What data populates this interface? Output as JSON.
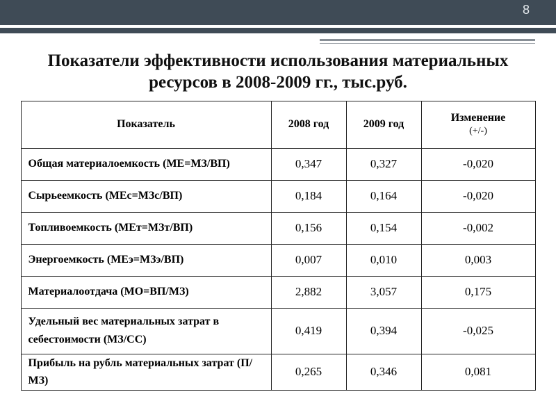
{
  "page_number": "8",
  "title": "Показатели эффективности использования материальных ресурсов в 2008-2009 гг., тыс.руб.",
  "columns": {
    "indicator": "Показатель",
    "year1": "2008 год",
    "year2": "2009 год",
    "change": "Изменение",
    "change_sub": "(+/-)"
  },
  "rows": [
    {
      "label": "Общая материалоемкость (МЕ=МЗ/ВП)",
      "y1": "0,347",
      "y2": "0,327",
      "chg": "-0,020",
      "tall": false
    },
    {
      "label": "Сырьеемкость (МЕс=МЗс/ВП)",
      "y1": "0,184",
      "y2": "0,164",
      "chg": "-0,020",
      "tall": false
    },
    {
      "label": "Топливоемкость (МЕт=МЗт/ВП)",
      "y1": "0,156",
      "y2": "0,154",
      "chg": "-0,002",
      "tall": false
    },
    {
      "label": "Энергоемкость (МЕэ=МЗэ/ВП)",
      "y1": "0,007",
      "y2": "0,010",
      "chg": "0,003",
      "tall": false
    },
    {
      "label": "Материалоотдача (МО=ВП/МЗ)",
      "y1": "2,882",
      "y2": "3,057",
      "chg": "0,175",
      "tall": false
    },
    {
      "label": "Удельный вес материальных затрат в себестоимости (МЗ/СС)",
      "y1": "0,419",
      "y2": "0,394",
      "chg": "-0,025",
      "tall": true
    },
    {
      "label": "Прибыль на рубль материальных затрат (П/МЗ)",
      "y1": "0,265",
      "y2": "0,346",
      "chg": "0,081",
      "tall": false
    }
  ],
  "colors": {
    "topbar": "#3f4b56",
    "topbar_line": "#ffffff",
    "page_number": "#e6ebef",
    "divider": "#888f96",
    "border": "#222222",
    "text": "#111111",
    "background": "#ffffff"
  }
}
